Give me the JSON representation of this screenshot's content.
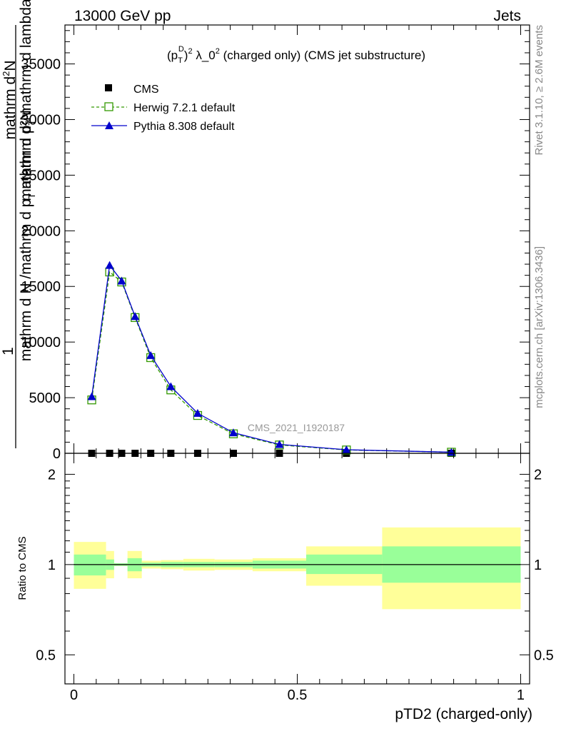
{
  "header": {
    "left": "13000 GeV pp",
    "right": "Jets"
  },
  "side": {
    "rivet": "Rivet 3.1.10, ≥ 2.6M events",
    "mcplots": "mcplots.cern.ch [arXiv:1306.3436]"
  },
  "chart_data": [
    {
      "type": "line",
      "title": "(p_T^D)^2 λ_0^2 (charged only) (CMS jet substructure)",
      "title_parts": {
        "p": "(p",
        "sub": "T",
        "sup": "D",
        "rest": ")",
        "sup2": "2",
        "lam": " λ_0",
        "sup3": "2",
        "tail": " (charged only) (CMS jet substructure)"
      },
      "ylabel_main": "1",
      "ylabel_lines": [
        "mathrm d N / mathrm d p_T mathrm d η",
        "mathrm d²N",
        "mathrm d p_T mathrm d lambda"
      ],
      "ylabel_raw": [
        "mathrm d N /mathrm d p",
        "T",
        " mathrm d²N",
        "mathrm d p",
        "T",
        " mathrm d lambda",
        "mathrm d",
        "2",
        "N"
      ],
      "watermark": "CMS_2021_I1920187",
      "xlim": [
        -0.02,
        1.02
      ],
      "ylim": [
        0,
        38500
      ],
      "yticks": [
        0,
        5000,
        10000,
        15000,
        20000,
        25000,
        30000,
        35000
      ],
      "ytick_labels": [
        "0",
        "5000",
        "10000",
        "15000",
        "20000",
        "25000",
        "30000",
        "35000"
      ],
      "legend_position": "top-left",
      "series": [
        {
          "name": "CMS",
          "marker": "square",
          "color": "#000000",
          "x": [
            0.04,
            0.08,
            0.107,
            0.137,
            0.172,
            0.217,
            0.277,
            0.357,
            0.46,
            0.61,
            0.845
          ],
          "y": [
            0,
            0,
            0,
            0,
            0,
            0,
            0,
            0,
            0,
            0,
            0
          ]
        },
        {
          "name": "Herwig 7.2.1 default",
          "marker": "open-square",
          "line": "dashed",
          "color": "#339900",
          "x": [
            0.04,
            0.08,
            0.107,
            0.137,
            0.172,
            0.217,
            0.277,
            0.357,
            0.46,
            0.61,
            0.845
          ],
          "y": [
            4800,
            16300,
            15400,
            12200,
            8600,
            5700,
            3400,
            1750,
            750,
            300,
            100
          ]
        },
        {
          "name": "Pythia 8.308 default",
          "marker": "triangle",
          "line": "solid",
          "color": "#0000cc",
          "x": [
            0.04,
            0.08,
            0.107,
            0.137,
            0.172,
            0.217,
            0.277,
            0.357,
            0.46,
            0.61,
            0.845
          ],
          "y": [
            5100,
            16900,
            15500,
            12300,
            8800,
            6000,
            3600,
            1850,
            800,
            320,
            100
          ]
        }
      ]
    },
    {
      "type": "area",
      "ylabel": "Ratio to CMS",
      "xlabel": "pTD2 (charged-only)",
      "xlim": [
        -0.02,
        1.02
      ],
      "ylim": [
        0.4,
        2.35
      ],
      "log_y": true,
      "xticks": [
        0,
        0.5,
        1
      ],
      "xtick_labels": [
        "0",
        "0.5",
        "1"
      ],
      "yticks": [
        0.5,
        1,
        2
      ],
      "ytick_labels": [
        "0.5",
        "1",
        "2"
      ],
      "bins": [
        {
          "lo": 0.0,
          "hi": 0.072,
          "inner": [
            0.92,
            1.08
          ],
          "outer": [
            0.83,
            1.19
          ]
        },
        {
          "lo": 0.072,
          "hi": 0.09,
          "inner": [
            0.96,
            1.04
          ],
          "outer": [
            0.9,
            1.11
          ]
        },
        {
          "lo": 0.09,
          "hi": 0.12,
          "inner": [
            0.99,
            1.01
          ],
          "outer": [
            0.99,
            1.01
          ]
        },
        {
          "lo": 0.12,
          "hi": 0.152,
          "inner": [
            0.95,
            1.05
          ],
          "outer": [
            0.9,
            1.11
          ]
        },
        {
          "lo": 0.152,
          "hi": 0.195,
          "inner": [
            0.985,
            1.015
          ],
          "outer": [
            0.97,
            1.03
          ]
        },
        {
          "lo": 0.195,
          "hi": 0.245,
          "inner": [
            0.98,
            1.02
          ],
          "outer": [
            0.965,
            1.035
          ]
        },
        {
          "lo": 0.245,
          "hi": 0.315,
          "inner": [
            0.98,
            1.02
          ],
          "outer": [
            0.955,
            1.045
          ]
        },
        {
          "lo": 0.315,
          "hi": 0.4,
          "inner": [
            0.98,
            1.02
          ],
          "outer": [
            0.96,
            1.04
          ]
        },
        {
          "lo": 0.4,
          "hi": 0.52,
          "inner": [
            0.97,
            1.03
          ],
          "outer": [
            0.95,
            1.05
          ]
        },
        {
          "lo": 0.52,
          "hi": 0.69,
          "inner": [
            0.93,
            1.08
          ],
          "outer": [
            0.85,
            1.15
          ]
        },
        {
          "lo": 0.69,
          "hi": 1.0,
          "inner": [
            0.87,
            1.15
          ],
          "outer": [
            0.71,
            1.33
          ]
        }
      ],
      "colors": {
        "inner": "#99ff99",
        "outer": "#ffff99"
      }
    }
  ]
}
